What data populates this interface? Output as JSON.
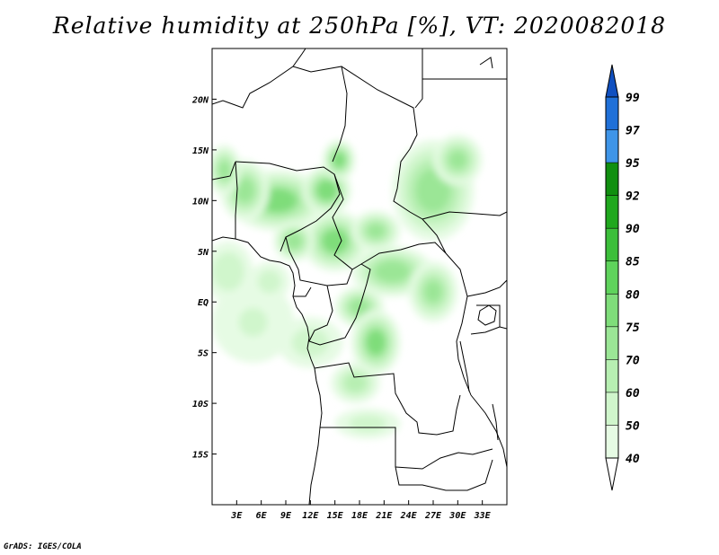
{
  "title": "Relative humidity at 250hPa [%], VT: 2020082018",
  "credit": "GrADS: IGES/COLA",
  "map": {
    "lon_range": [
      0,
      36
    ],
    "lat_range": [
      -20,
      25
    ],
    "x_ticks": [
      "3E",
      "6E",
      "9E",
      "12E",
      "15E",
      "18E",
      "21E",
      "24E",
      "27E",
      "30E",
      "33E"
    ],
    "x_tick_values": [
      3,
      6,
      9,
      12,
      15,
      18,
      21,
      24,
      27,
      30,
      33
    ],
    "y_ticks": [
      "20N",
      "15N",
      "10N",
      "5N",
      "EQ",
      "5S",
      "10S",
      "15S"
    ],
    "y_tick_values": [
      20,
      15,
      10,
      5,
      0,
      -5,
      -10,
      -15
    ]
  },
  "colorbar": {
    "labels": [
      "40",
      "50",
      "60",
      "70",
      "75",
      "80",
      "85",
      "90",
      "92",
      "95",
      "97",
      "99"
    ],
    "colors": [
      "#ffffff",
      "#e6fbe4",
      "#d0f6cc",
      "#b7efb2",
      "#9be696",
      "#7fdd7a",
      "#5fd35c",
      "#3cbf3a",
      "#20a81e",
      "#118f10",
      "#3f95e8",
      "#2070d8",
      "#1050c0"
    ]
  },
  "fields": {
    "contour_levels": [
      40,
      50,
      60,
      70,
      75,
      80
    ],
    "blobs": [
      {
        "lon": 8,
        "lat": 10,
        "rx": 6,
        "ry": 3,
        "v": 76
      },
      {
        "lon": 14,
        "lat": 11,
        "rx": 3,
        "ry": 2.4,
        "v": 78
      },
      {
        "lon": 15.5,
        "lat": 14,
        "rx": 2,
        "ry": 2,
        "v": 76
      },
      {
        "lon": 4,
        "lat": 11,
        "rx": 3,
        "ry": 3,
        "v": 72
      },
      {
        "lon": 1.5,
        "lat": 13,
        "rx": 2,
        "ry": 2.5,
        "v": 70
      },
      {
        "lon": 15,
        "lat": 6,
        "rx": 4,
        "ry": 3,
        "v": 76
      },
      {
        "lon": 10,
        "lat": 6,
        "rx": 2.5,
        "ry": 2,
        "v": 72
      },
      {
        "lon": 20,
        "lat": 7,
        "rx": 3,
        "ry": 2,
        "v": 70
      },
      {
        "lon": 27,
        "lat": 11,
        "rx": 5,
        "ry": 5,
        "v": 74
      },
      {
        "lon": 30,
        "lat": 14,
        "rx": 3,
        "ry": 2.5,
        "v": 70
      },
      {
        "lon": 22,
        "lat": 3,
        "rx": 5,
        "ry": 2.5,
        "v": 74
      },
      {
        "lon": 27,
        "lat": 1,
        "rx": 3,
        "ry": 3,
        "v": 70
      },
      {
        "lon": 18,
        "lat": -0.5,
        "rx": 3,
        "ry": 2,
        "v": 72
      },
      {
        "lon": 20,
        "lat": -4,
        "rx": 3,
        "ry": 3.2,
        "v": 76
      },
      {
        "lon": 17.5,
        "lat": -8,
        "rx": 3,
        "ry": 2,
        "v": 64
      },
      {
        "lon": 12,
        "lat": -4,
        "rx": 4,
        "ry": 2.5,
        "v": 55
      },
      {
        "lon": 5,
        "lat": -2,
        "rx": 5,
        "ry": 4,
        "v": 50
      },
      {
        "lon": 2,
        "lat": 3,
        "rx": 3,
        "ry": 3,
        "v": 58
      },
      {
        "lon": 19,
        "lat": -12,
        "rx": 4,
        "ry": 1.5,
        "v": 55
      },
      {
        "lon": 7,
        "lat": 2,
        "rx": 2.5,
        "ry": 2,
        "v": 55
      }
    ]
  }
}
